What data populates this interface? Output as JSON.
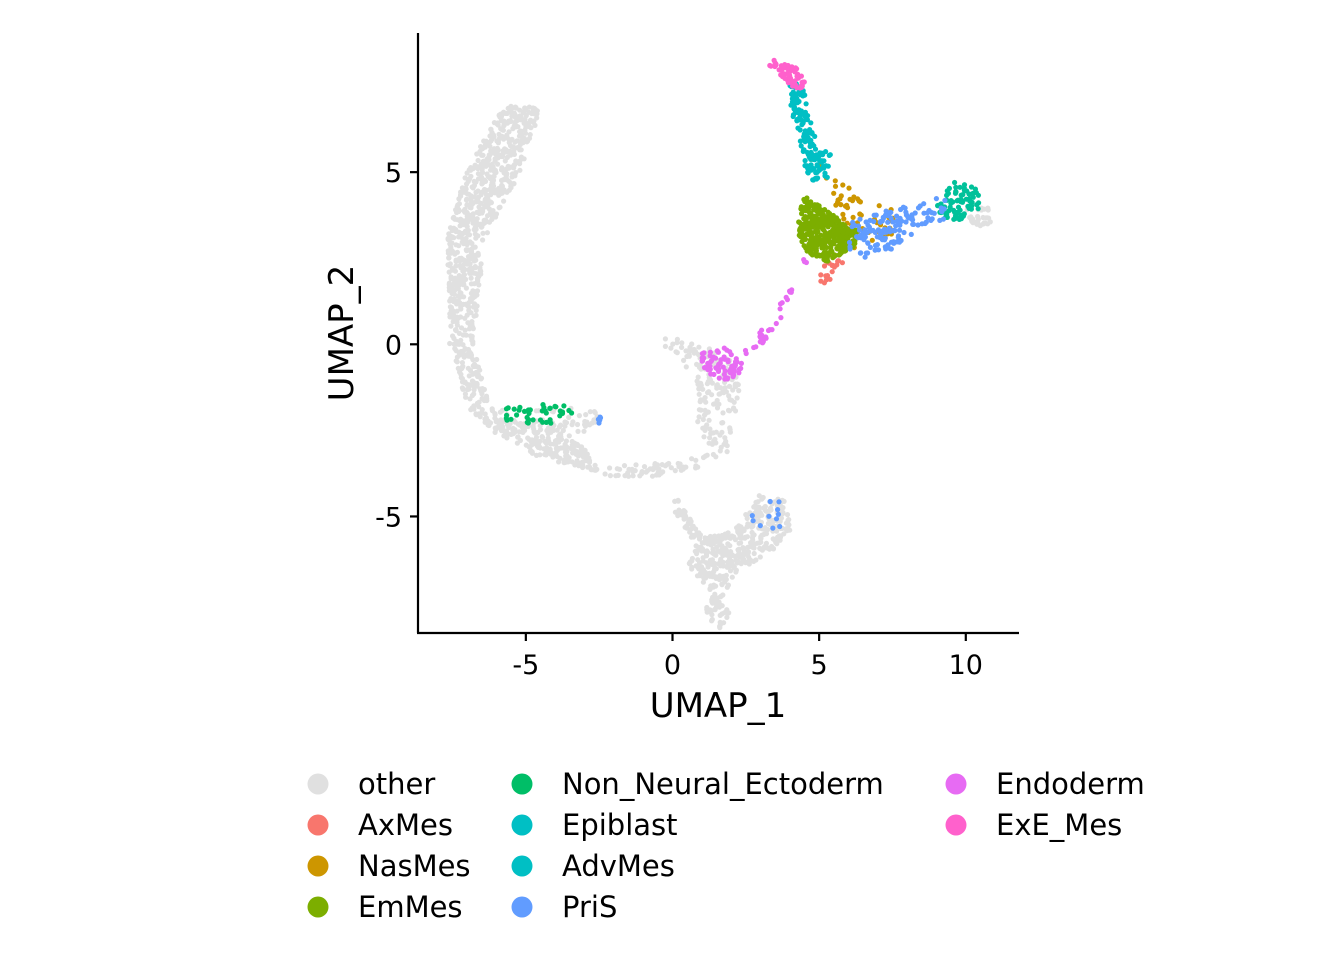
{
  "chart_data": {
    "type": "scatter",
    "xlabel": "UMAP_1",
    "ylabel": "UMAP_2",
    "xlim": [
      -8.5,
      11.8
    ],
    "ylim": [
      -8.4,
      9.0
    ],
    "xticks": [
      -5,
      0,
      5,
      10
    ],
    "yticks": [
      -5,
      0,
      5
    ],
    "xtick_labels": [
      "-5",
      "0",
      "5",
      "10"
    ],
    "ytick_labels": [
      "-5",
      "0",
      "5"
    ],
    "grid": false,
    "legend_position": "bottom",
    "series": [
      {
        "name": "other",
        "color": "#E0E0E0",
        "regions": [
          {
            "path": [
              [
                -5.5,
                7.1
              ],
              [
                -4.5,
                6.8
              ],
              [
                -5.2,
                5.0
              ],
              [
                -6.4,
                3.0
              ],
              [
                -6.8,
                0.0
              ],
              [
                -6.3,
                -1.6
              ],
              [
                -5.5,
                -2.1
              ],
              [
                -4.2,
                -2.4
              ],
              [
                -3.0,
                -3.0
              ],
              [
                -2.5,
                -3.7
              ],
              [
                -4.5,
                -3.3
              ],
              [
                -6.0,
                -2.6
              ],
              [
                -7.0,
                -1.8
              ],
              [
                -7.6,
                0.0
              ],
              [
                -7.7,
                3.0
              ],
              [
                -7.0,
                5.1
              ],
              [
                -6.0,
                6.6
              ]
            ],
            "n": 360,
            "density": 1.3
          },
          {
            "path": [
              [
                -4.8,
                -1.9
              ],
              [
                -3.5,
                -1.8
              ],
              [
                -2.6,
                -1.9
              ],
              [
                -2.5,
                -2.4
              ],
              [
                -3.3,
                -2.7
              ],
              [
                -4.6,
                -2.5
              ]
            ],
            "n": 20
          },
          {
            "path": [
              [
                -2.4,
                -3.55
              ],
              [
                -0.4,
                -3.45
              ],
              [
                0.7,
                -3.2
              ],
              [
                1.8,
                -2.6
              ],
              [
                1.9,
                -3.1
              ],
              [
                0.9,
                -3.6
              ],
              [
                -0.4,
                -3.85
              ],
              [
                -2.3,
                -3.85
              ]
            ],
            "n": 30
          },
          {
            "path": [
              [
                -0.4,
                0.2
              ],
              [
                0.5,
                0.2
              ],
              [
                1.5,
                -0.2
              ],
              [
                2.1,
                -0.5
              ],
              [
                2.3,
                -1.3
              ],
              [
                2.0,
                -2.8
              ],
              [
                1.5,
                -3.2
              ],
              [
                0.9,
                -2.7
              ],
              [
                0.7,
                -0.9
              ],
              [
                0.1,
                -0.3
              ],
              [
                -0.4,
                0.0
              ]
            ],
            "n": 75
          },
          {
            "path": [
              [
                0.1,
                -4.4
              ],
              [
                1.0,
                -5.6
              ],
              [
                2.1,
                -5.4
              ],
              [
                3.0,
                -4.3
              ],
              [
                3.9,
                -4.5
              ],
              [
                4.1,
                -5.3
              ],
              [
                3.3,
                -6.1
              ],
              [
                2.2,
                -6.6
              ],
              [
                1.6,
                -7.5
              ],
              [
                2.0,
                -7.8
              ],
              [
                1.6,
                -8.3
              ],
              [
                1.1,
                -7.8
              ],
              [
                1.3,
                -7.2
              ],
              [
                0.5,
                -6.4
              ],
              [
                0.8,
                -5.8
              ],
              [
                0.0,
                -4.8
              ]
            ],
            "n": 170,
            "density": 1.2
          },
          {
            "path": [
              [
                10.0,
                3.95
              ],
              [
                10.8,
                4.0
              ],
              [
                11.0,
                3.6
              ],
              [
                10.5,
                3.35
              ],
              [
                9.9,
                3.6
              ]
            ],
            "n": 14
          }
        ]
      },
      {
        "name": "AxMes",
        "color": "#F8766D",
        "regions": [
          {
            "path": [
              [
                5.3,
                2.7
              ],
              [
                5.9,
                2.5
              ],
              [
                5.4,
                1.9
              ],
              [
                5.0,
                1.55
              ],
              [
                4.95,
                1.8
              ]
            ],
            "n": 14
          }
        ]
      },
      {
        "name": "NasMes",
        "color": "#CD9600",
        "regions": [
          {
            "path": [
              [
                5.7,
                4.95
              ],
              [
                6.0,
                4.6
              ],
              [
                7.6,
                3.85
              ],
              [
                7.5,
                3.1
              ],
              [
                6.1,
                2.7
              ],
              [
                5.8,
                3.5
              ],
              [
                4.7,
                5.4
              ]
            ],
            "n": 36
          }
        ]
      },
      {
        "name": "EmMes",
        "color": "#7CAE00",
        "regions": [
          {
            "path": [
              [
                4.5,
                4.3
              ],
              [
                5.5,
                3.75
              ],
              [
                6.3,
                3.3
              ],
              [
                6.25,
                2.85
              ],
              [
                5.3,
                2.4
              ],
              [
                4.6,
                2.6
              ],
              [
                4.3,
                3.2
              ],
              [
                4.3,
                3.8
              ]
            ],
            "n": 140,
            "density": 1.6
          }
        ]
      },
      {
        "name": "Non_Neural_Ectoderm",
        "color": "#00BE67",
        "regions": [
          {
            "path": [
              [
                -5.7,
                -1.85
              ],
              [
                -4.4,
                -1.75
              ],
              [
                -3.3,
                -1.75
              ],
              [
                -3.3,
                -2.15
              ],
              [
                -4.3,
                -2.35
              ],
              [
                -5.7,
                -2.25
              ]
            ],
            "n": 26
          }
        ]
      },
      {
        "name": "Epiblast",
        "color": "#00BFC4",
        "regions": [
          {
            "path": [
              [
                9.0,
                4.0
              ],
              [
                9.6,
                4.75
              ],
              [
                10.4,
                4.55
              ],
              [
                10.5,
                3.95
              ],
              [
                9.8,
                3.6
              ],
              [
                9.1,
                3.7
              ]
            ],
            "n": 48,
            "color": "#00C19A"
          }
        ]
      },
      {
        "name": "AdvMes",
        "color": "#00BFC4",
        "regions": [
          {
            "path": [
              [
                3.95,
                7.6
              ],
              [
                4.4,
                7.6
              ],
              [
                4.75,
                6.6
              ],
              [
                4.9,
                5.9
              ],
              [
                5.4,
                5.5
              ],
              [
                5.3,
                4.8
              ],
              [
                4.7,
                4.7
              ],
              [
                4.4,
                5.5
              ],
              [
                4.1,
                6.5
              ]
            ],
            "n": 95
          }
        ]
      },
      {
        "name": "PriS",
        "color": "#619CFF",
        "regions": [
          {
            "path": [
              [
                6.0,
                3.55
              ],
              [
                7.6,
                3.95
              ],
              [
                8.6,
                4.15
              ],
              [
                9.3,
                4.3
              ],
              [
                9.3,
                3.65
              ],
              [
                8.2,
                3.2
              ],
              [
                7.7,
                2.75
              ],
              [
                6.6,
                2.5
              ],
              [
                6.0,
                2.7
              ]
            ],
            "n": 90
          },
          {
            "path": [
              [
                2.7,
                -4.6
              ],
              [
                3.6,
                -4.45
              ],
              [
                4.1,
                -5.1
              ],
              [
                3.6,
                -5.5
              ],
              [
                2.6,
                -5.2
              ]
            ],
            "n": 7
          },
          {
            "path": [
              [
                -2.55,
                -2.1
              ],
              [
                -2.45,
                -2.1
              ],
              [
                -2.45,
                -2.3
              ],
              [
                -2.55,
                -2.3
              ]
            ],
            "n": 3
          }
        ]
      },
      {
        "name": "Endoderm",
        "color": "#E76BF3",
        "regions": [
          {
            "path": [
              [
                1.0,
                -0.2
              ],
              [
                1.8,
                -0.1
              ],
              [
                2.4,
                -0.5
              ],
              [
                2.3,
                -0.95
              ],
              [
                1.6,
                -1.05
              ],
              [
                1.0,
                -0.8
              ]
            ],
            "n": 42
          },
          {
            "path": [
              [
                2.4,
                -0.2
              ],
              [
                3.0,
                0.4
              ],
              [
                3.6,
                1.1
              ],
              [
                3.9,
                1.7
              ],
              [
                4.1,
                1.6
              ],
              [
                3.8,
                0.9
              ],
              [
                3.1,
                0.0
              ],
              [
                2.6,
                -0.35
              ]
            ],
            "n": 18
          },
          {
            "path": [
              [
                4.5,
                2.6
              ],
              [
                4.7,
                2.5
              ],
              [
                4.6,
                2.3
              ],
              [
                4.4,
                2.4
              ]
            ],
            "n": 2
          }
        ]
      },
      {
        "name": "ExE_Mes",
        "color": "#FF61CC",
        "regions": [
          {
            "path": [
              [
                3.3,
                8.35
              ],
              [
                4.2,
                8.05
              ],
              [
                4.6,
                7.6
              ],
              [
                4.25,
                7.3
              ],
              [
                3.85,
                7.7
              ],
              [
                3.3,
                8.1
              ]
            ],
            "n": 42
          }
        ]
      }
    ]
  }
}
